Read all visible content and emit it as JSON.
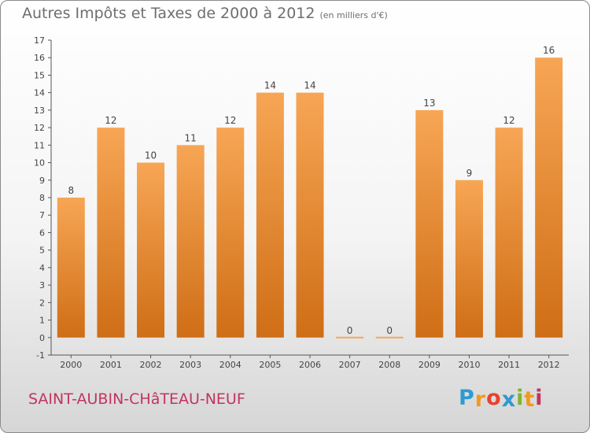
{
  "header": {
    "title": "Autres Impôts et Taxes de 2000 à 2012",
    "unit": "(en milliers d'€)"
  },
  "footer": {
    "city": "SAINT-AUBIN-CHâTEAU-NEUF",
    "logo_letters": [
      "P",
      "r",
      "o",
      "x",
      "i",
      "t",
      "i"
    ],
    "logo_colors": [
      "#2e9ad0",
      "#f29a1d",
      "#e8422e",
      "#2e9ad0",
      "#7ab72e",
      "#f29a1d",
      "#c0355e"
    ]
  },
  "colors": {
    "bar_light": "#f7a655",
    "bar_dark": "#cf6e16",
    "axis": "#555555",
    "text": "#444444"
  },
  "chart_data": {
    "type": "bar",
    "title": "Autres Impôts et Taxes de 2000 à 2012",
    "categories": [
      "2000",
      "2001",
      "2002",
      "2003",
      "2004",
      "2005",
      "2006",
      "2007",
      "2008",
      "2009",
      "2010",
      "2011",
      "2012"
    ],
    "values": [
      8,
      12,
      10,
      11,
      12,
      14,
      14,
      0,
      0,
      13,
      9,
      12,
      16
    ],
    "data_labels": [
      "8",
      "12",
      "10",
      "11",
      "12",
      "14",
      "14",
      "0",
      "0",
      "13",
      "9",
      "12",
      "16"
    ],
    "ylim": [
      -1,
      17
    ],
    "yticks": [
      -1,
      0,
      1,
      2,
      3,
      4,
      5,
      6,
      7,
      8,
      9,
      10,
      11,
      12,
      13,
      14,
      15,
      16,
      17
    ],
    "grid": false,
    "legend": "none"
  }
}
